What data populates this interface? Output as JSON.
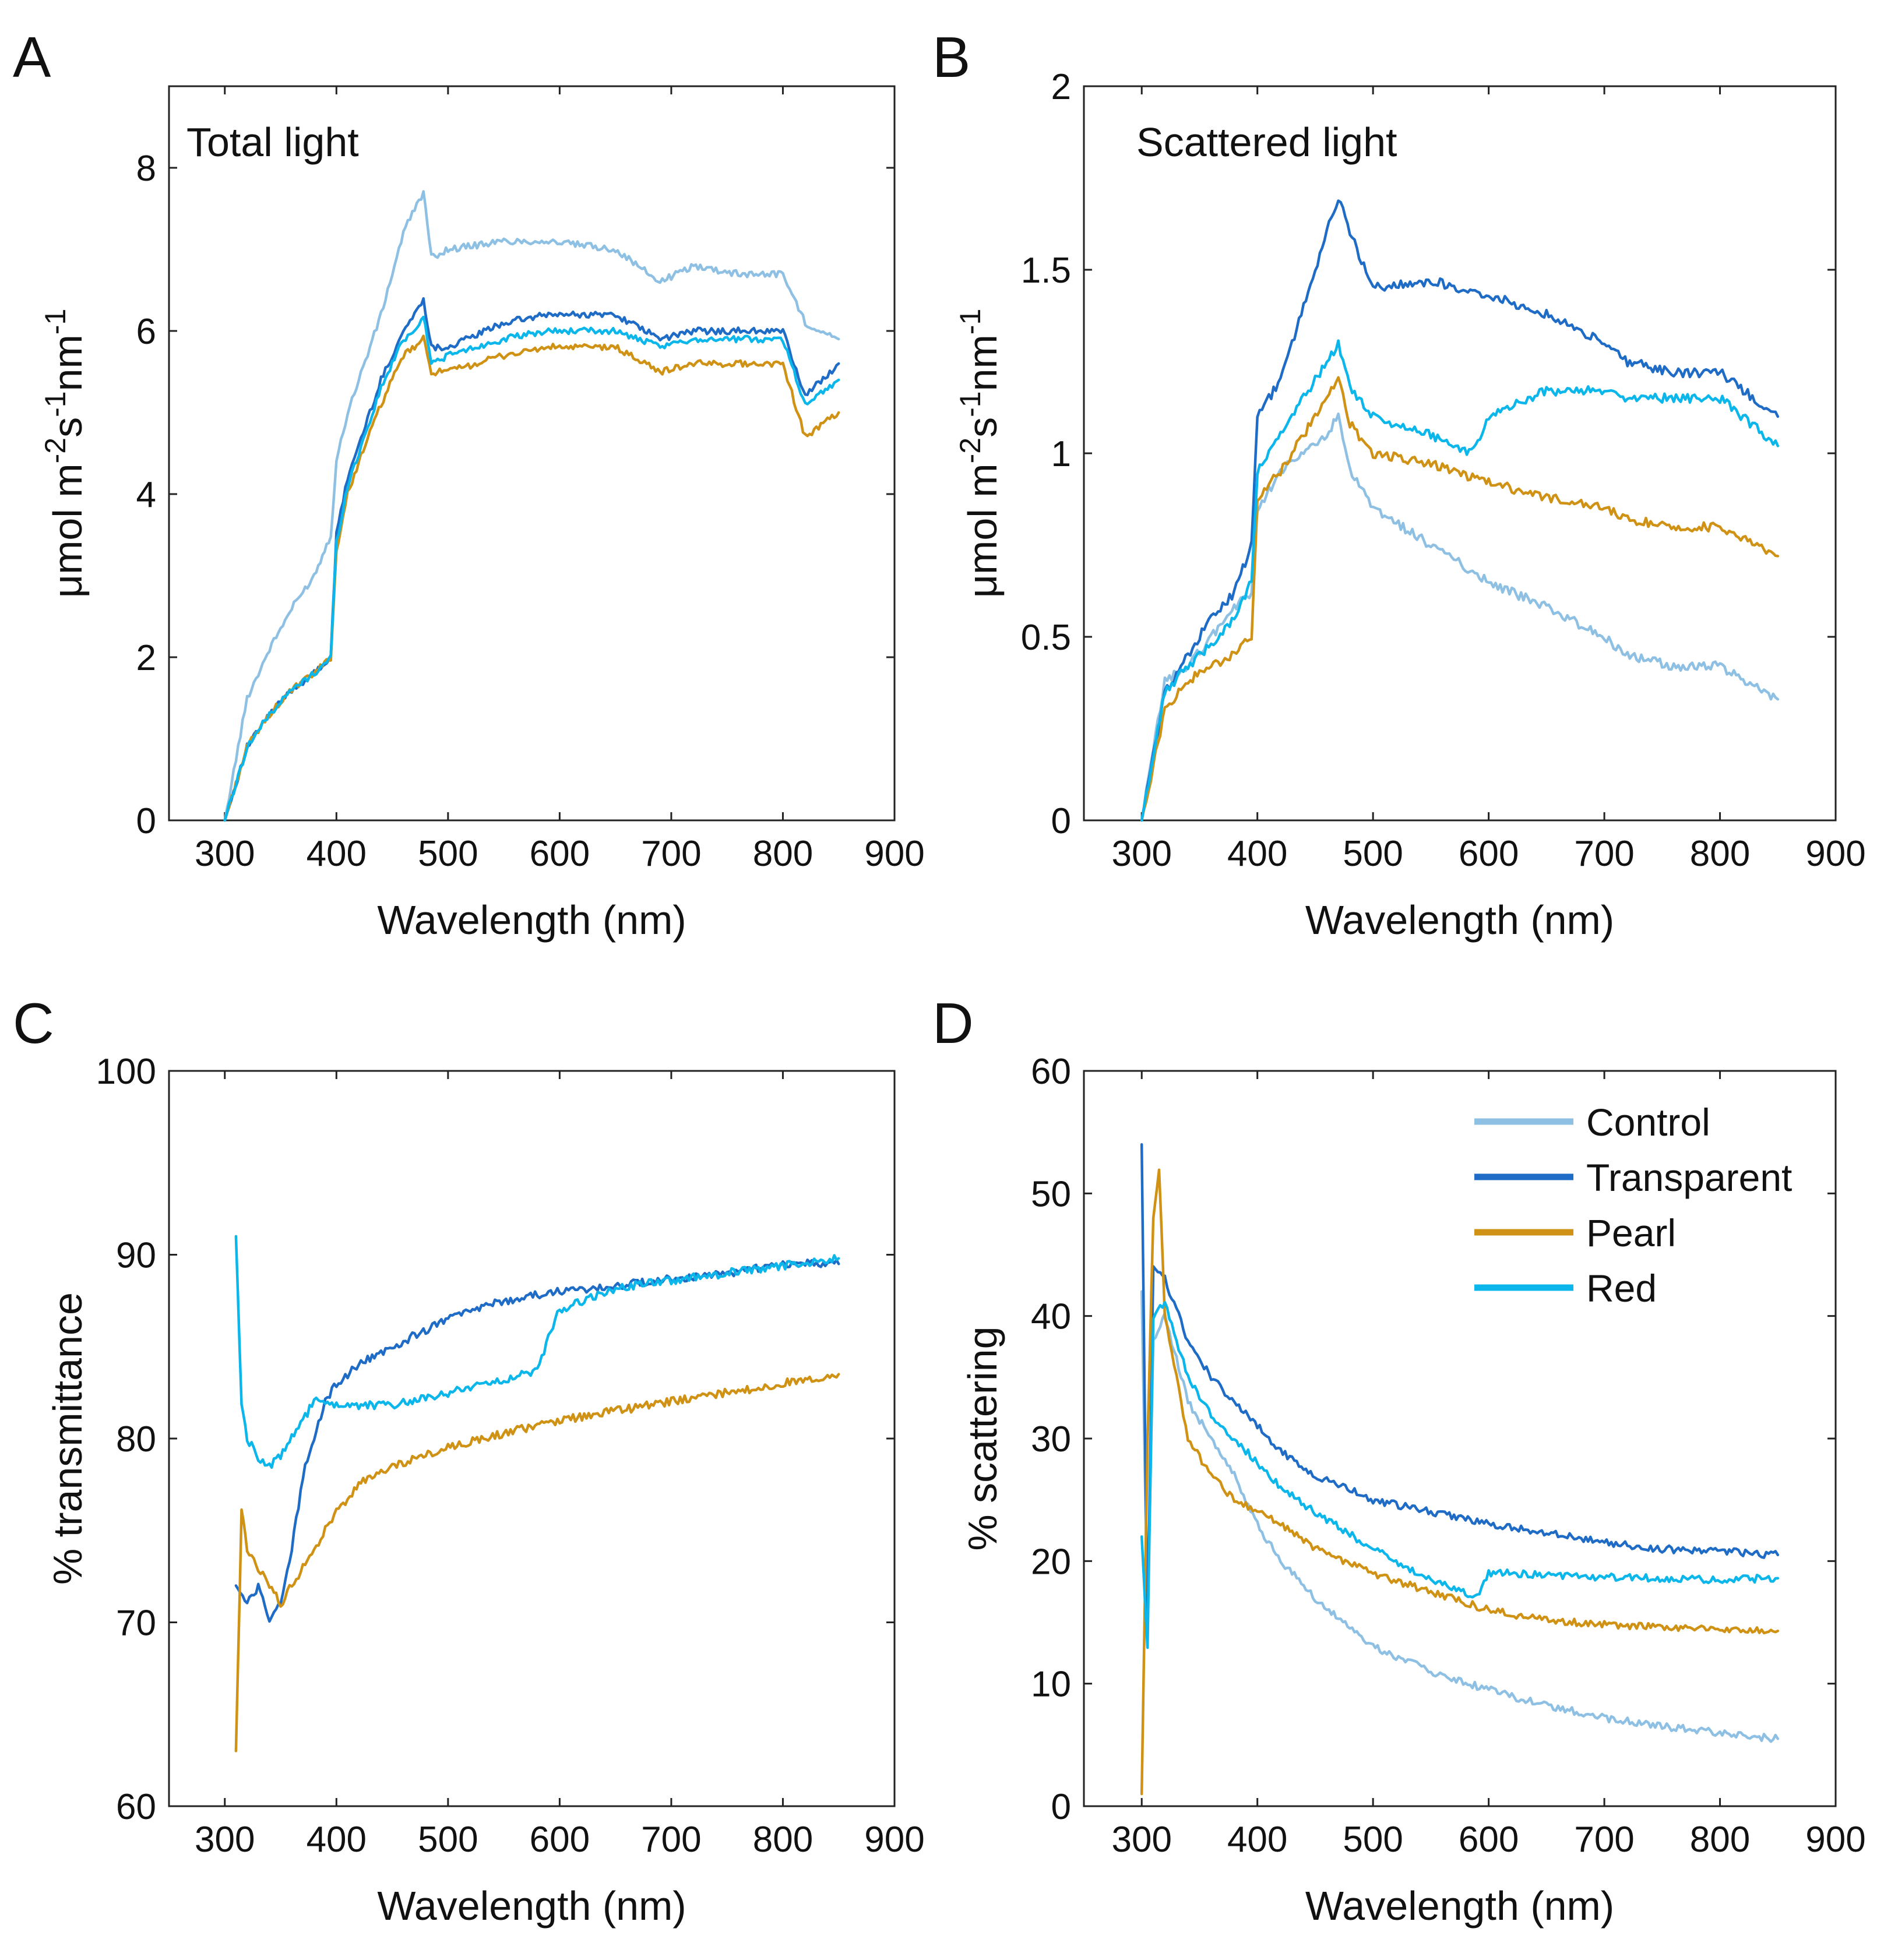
{
  "colors": {
    "Control": "#8ec0e4",
    "Transparent": "#1f6cc6",
    "Pearl": "#cf9214",
    "Red": "#0bb6eb"
  },
  "legend": {
    "items": [
      {
        "name": "Control",
        "color": "#8ec0e4"
      },
      {
        "name": "Transparent",
        "color": "#1f6cc6"
      },
      {
        "name": "Pearl",
        "color": "#cf9214"
      },
      {
        "name": "Red",
        "color": "#0bb6eb"
      }
    ],
    "placement": "top-right of panel D"
  },
  "chart_data": [
    {
      "id": "A",
      "panel": "A",
      "type": "line",
      "title": "Total light",
      "xlabel": "Wavelength (nm)",
      "ylabel_parts": [
        "μmol m",
        "-2",
        "s",
        "-1",
        "nm",
        "-1"
      ],
      "xlim": [
        250,
        900
      ],
      "ylim": [
        0,
        9
      ],
      "xticks": [
        300,
        400,
        500,
        600,
        700,
        800,
        900
      ],
      "yticks": [
        0,
        2,
        4,
        6,
        8
      ],
      "xtick_labels": [
        "300",
        "400",
        "500",
        "600",
        "700",
        "800",
        "900"
      ],
      "ytick_labels": [
        "0",
        "2",
        "4",
        "6",
        "8"
      ],
      "series": [
        {
          "name": "Control",
          "x": [
            300,
            320,
            340,
            360,
            380,
            395,
            400,
            410,
            420,
            440,
            460,
            470,
            478,
            485,
            500,
            550,
            590,
            650,
            690,
            720,
            760,
            800,
            820,
            850
          ],
          "y": [
            0,
            1.5,
            2.1,
            2.6,
            3.0,
            3.5,
            4.4,
            5.0,
            5.4,
            6.2,
            7.2,
            7.5,
            7.7,
            6.9,
            7.0,
            7.1,
            7.1,
            7.0,
            6.6,
            6.8,
            6.7,
            6.7,
            6.1,
            5.9
          ]
        },
        {
          "name": "Transparent",
          "x": [
            300,
            320,
            340,
            360,
            380,
            395,
            400,
            410,
            420,
            440,
            460,
            470,
            478,
            485,
            500,
            550,
            590,
            650,
            690,
            720,
            760,
            800,
            820,
            850
          ],
          "y": [
            0,
            0.9,
            1.3,
            1.6,
            1.8,
            2.0,
            3.5,
            4.2,
            4.6,
            5.4,
            6.0,
            6.2,
            6.4,
            5.8,
            5.8,
            6.1,
            6.2,
            6.2,
            5.9,
            6.0,
            6.0,
            6.0,
            5.2,
            5.6
          ]
        },
        {
          "name": "Pearl",
          "x": [
            300,
            320,
            340,
            360,
            380,
            395,
            400,
            410,
            420,
            440,
            460,
            470,
            478,
            485,
            500,
            550,
            590,
            650,
            690,
            720,
            760,
            800,
            820,
            850
          ],
          "y": [
            0,
            0.9,
            1.3,
            1.6,
            1.8,
            2.0,
            3.3,
            4.0,
            4.4,
            5.1,
            5.7,
            5.8,
            5.9,
            5.5,
            5.5,
            5.7,
            5.8,
            5.8,
            5.5,
            5.6,
            5.6,
            5.6,
            4.7,
            5.0
          ]
        },
        {
          "name": "Red",
          "x": [
            300,
            320,
            340,
            360,
            380,
            395,
            400,
            410,
            420,
            440,
            460,
            470,
            478,
            485,
            500,
            550,
            590,
            650,
            690,
            720,
            760,
            800,
            820,
            850
          ],
          "y": [
            0,
            0.9,
            1.3,
            1.6,
            1.8,
            2.0,
            3.4,
            4.1,
            4.5,
            5.3,
            5.9,
            6.0,
            6.2,
            5.6,
            5.7,
            5.9,
            6.0,
            6.0,
            5.8,
            5.9,
            5.9,
            5.9,
            5.1,
            5.4
          ]
        }
      ]
    },
    {
      "id": "B",
      "panel": "B",
      "type": "line",
      "title": "Scattered light",
      "xlabel": "Wavelength (nm)",
      "ylabel_parts": [
        "μmol m",
        "-2",
        "s",
        "-1",
        "nm",
        "-1"
      ],
      "xlim": [
        250,
        900
      ],
      "ylim": [
        0,
        2
      ],
      "xticks": [
        300,
        400,
        500,
        600,
        700,
        800,
        900
      ],
      "yticks": [
        0,
        0.5,
        1,
        1.5,
        2
      ],
      "xtick_labels": [
        "300",
        "400",
        "500",
        "600",
        "700",
        "800",
        "900"
      ],
      "ytick_labels": [
        "0",
        "0.5",
        "1",
        "1.5",
        "2"
      ],
      "series": [
        {
          "name": "Control",
          "x": [
            300,
            320,
            340,
            360,
            380,
            395,
            400,
            420,
            440,
            460,
            470,
            480,
            500,
            550,
            600,
            650,
            700,
            720,
            760,
            800,
            850
          ],
          "y": [
            0,
            0.38,
            0.42,
            0.5,
            0.58,
            0.62,
            0.85,
            0.95,
            1.0,
            1.05,
            1.1,
            0.95,
            0.85,
            0.75,
            0.65,
            0.58,
            0.5,
            0.45,
            0.42,
            0.42,
            0.33
          ]
        },
        {
          "name": "Transparent",
          "x": [
            300,
            320,
            340,
            360,
            380,
            395,
            400,
            420,
            440,
            460,
            470,
            480,
            500,
            550,
            600,
            650,
            700,
            720,
            760,
            800,
            850
          ],
          "y": [
            0,
            0.35,
            0.45,
            0.55,
            0.62,
            0.75,
            1.1,
            1.2,
            1.4,
            1.6,
            1.7,
            1.6,
            1.45,
            1.47,
            1.43,
            1.38,
            1.3,
            1.25,
            1.22,
            1.22,
            1.1
          ]
        },
        {
          "name": "Pearl",
          "x": [
            300,
            320,
            340,
            360,
            380,
            395,
            400,
            420,
            440,
            460,
            470,
            480,
            500,
            550,
            600,
            650,
            700,
            720,
            760,
            800,
            850
          ],
          "y": [
            0,
            0.3,
            0.38,
            0.42,
            0.45,
            0.5,
            0.88,
            0.95,
            1.05,
            1.15,
            1.2,
            1.08,
            1.0,
            0.97,
            0.92,
            0.88,
            0.85,
            0.82,
            0.8,
            0.8,
            0.72
          ]
        },
        {
          "name": "Red",
          "x": [
            300,
            320,
            340,
            360,
            380,
            395,
            400,
            420,
            440,
            460,
            470,
            480,
            500,
            550,
            585,
            600,
            650,
            700,
            720,
            760,
            800,
            850
          ],
          "y": [
            0,
            0.35,
            0.42,
            0.48,
            0.55,
            0.65,
            0.95,
            1.05,
            1.15,
            1.25,
            1.3,
            1.18,
            1.1,
            1.05,
            1.0,
            1.1,
            1.17,
            1.17,
            1.15,
            1.15,
            1.15,
            1.02
          ]
        }
      ]
    },
    {
      "id": "C",
      "panel": "C",
      "type": "line",
      "title": "",
      "xlabel": "Wavelength (nm)",
      "ylabel_parts": [
        "% transmittance"
      ],
      "xlim": [
        250,
        900
      ],
      "ylim": [
        60,
        100
      ],
      "xticks": [
        300,
        400,
        500,
        600,
        700,
        800,
        900
      ],
      "yticks": [
        60,
        70,
        80,
        90,
        100
      ],
      "xtick_labels": [
        "300",
        "400",
        "500",
        "600",
        "700",
        "800",
        "900"
      ],
      "ytick_labels": [
        "60",
        "70",
        "80",
        "90",
        "100"
      ],
      "series": [
        {
          "name": "Transparent",
          "x": [
            310,
            320,
            330,
            340,
            350,
            360,
            370,
            380,
            390,
            400,
            420,
            450,
            500,
            550,
            600,
            650,
            700,
            750,
            800,
            850
          ],
          "y": [
            72,
            71,
            72,
            70,
            71,
            74,
            78,
            80,
            82,
            83,
            84,
            85,
            86.5,
            87.5,
            88,
            88.3,
            88.7,
            89,
            89.5,
            89.5
          ]
        },
        {
          "name": "Pearl",
          "x": [
            310,
            315,
            320,
            330,
            340,
            350,
            360,
            370,
            380,
            390,
            400,
            420,
            450,
            500,
            550,
            600,
            650,
            700,
            750,
            800,
            850
          ],
          "y": [
            63,
            76,
            74,
            73,
            72,
            71,
            72,
            73,
            74,
            75,
            76,
            77.5,
            78.5,
            79.5,
            80.3,
            81,
            81.5,
            82,
            82.5,
            83,
            83.5
          ]
        },
        {
          "name": "Red",
          "x": [
            310,
            315,
            320,
            330,
            340,
            350,
            360,
            370,
            380,
            390,
            400,
            450,
            500,
            550,
            580,
            590,
            600,
            650,
            700,
            750,
            800,
            850
          ],
          "y": [
            91,
            82,
            80,
            79,
            78.5,
            79,
            80,
            81,
            82,
            82,
            81.8,
            81.8,
            82.5,
            83.2,
            83.7,
            85.5,
            87,
            88.2,
            88.6,
            89,
            89.4,
            89.8
          ]
        }
      ]
    },
    {
      "id": "D",
      "panel": "D",
      "type": "line",
      "title": "",
      "xlabel": "Wavelength (nm)",
      "ylabel_parts": [
        "% scattering"
      ],
      "xlim": [
        250,
        900
      ],
      "ylim": [
        0,
        60
      ],
      "xticks": [
        300,
        400,
        500,
        600,
        700,
        800,
        900
      ],
      "yticks": [
        0,
        10,
        20,
        30,
        40,
        50,
        60
      ],
      "xtick_labels": [
        "300",
        "400",
        "500",
        "600",
        "700",
        "800",
        "900"
      ],
      "ytick_labels": [
        "0",
        "10",
        "20",
        "30",
        "40",
        "50",
        "60"
      ],
      "series": [
        {
          "name": "Control",
          "x": [
            300,
            305,
            310,
            320,
            340,
            360,
            380,
            400,
            420,
            450,
            500,
            550,
            600,
            650,
            700,
            750,
            800,
            850
          ],
          "y": [
            42,
            15,
            38,
            40,
            33,
            30,
            27,
            23,
            20,
            17,
            13,
            11,
            9.5,
            8.2,
            7.2,
            6.5,
            6,
            5.5
          ]
        },
        {
          "name": "Transparent",
          "x": [
            300,
            305,
            310,
            320,
            340,
            360,
            380,
            400,
            420,
            450,
            500,
            550,
            600,
            650,
            700,
            750,
            800,
            850
          ],
          "y": [
            54,
            14,
            44,
            43,
            38,
            35,
            33,
            31,
            29,
            27,
            25,
            24,
            23,
            22.3,
            21.5,
            21,
            20.8,
            20.5
          ]
        },
        {
          "name": "Pearl",
          "x": [
            300,
            305,
            310,
            315,
            320,
            330,
            340,
            360,
            380,
            400,
            420,
            450,
            500,
            550,
            600,
            650,
            700,
            750,
            800,
            850
          ],
          "y": [
            1,
            30,
            48,
            52,
            40,
            35,
            30,
            27,
            25,
            24,
            23,
            21,
            19,
            17.5,
            16,
            15.2,
            14.8,
            14.6,
            14.5,
            14.3
          ]
        },
        {
          "name": "Red",
          "x": [
            300,
            305,
            310,
            320,
            340,
            360,
            380,
            400,
            420,
            450,
            500,
            550,
            590,
            600,
            620,
            650,
            700,
            750,
            800,
            850
          ],
          "y": [
            22,
            13,
            40,
            41,
            35,
            32,
            30,
            28,
            26,
            24,
            21,
            18.5,
            17,
            19,
            19,
            18.8,
            18.7,
            18.6,
            18.5,
            18.6
          ]
        }
      ]
    }
  ]
}
